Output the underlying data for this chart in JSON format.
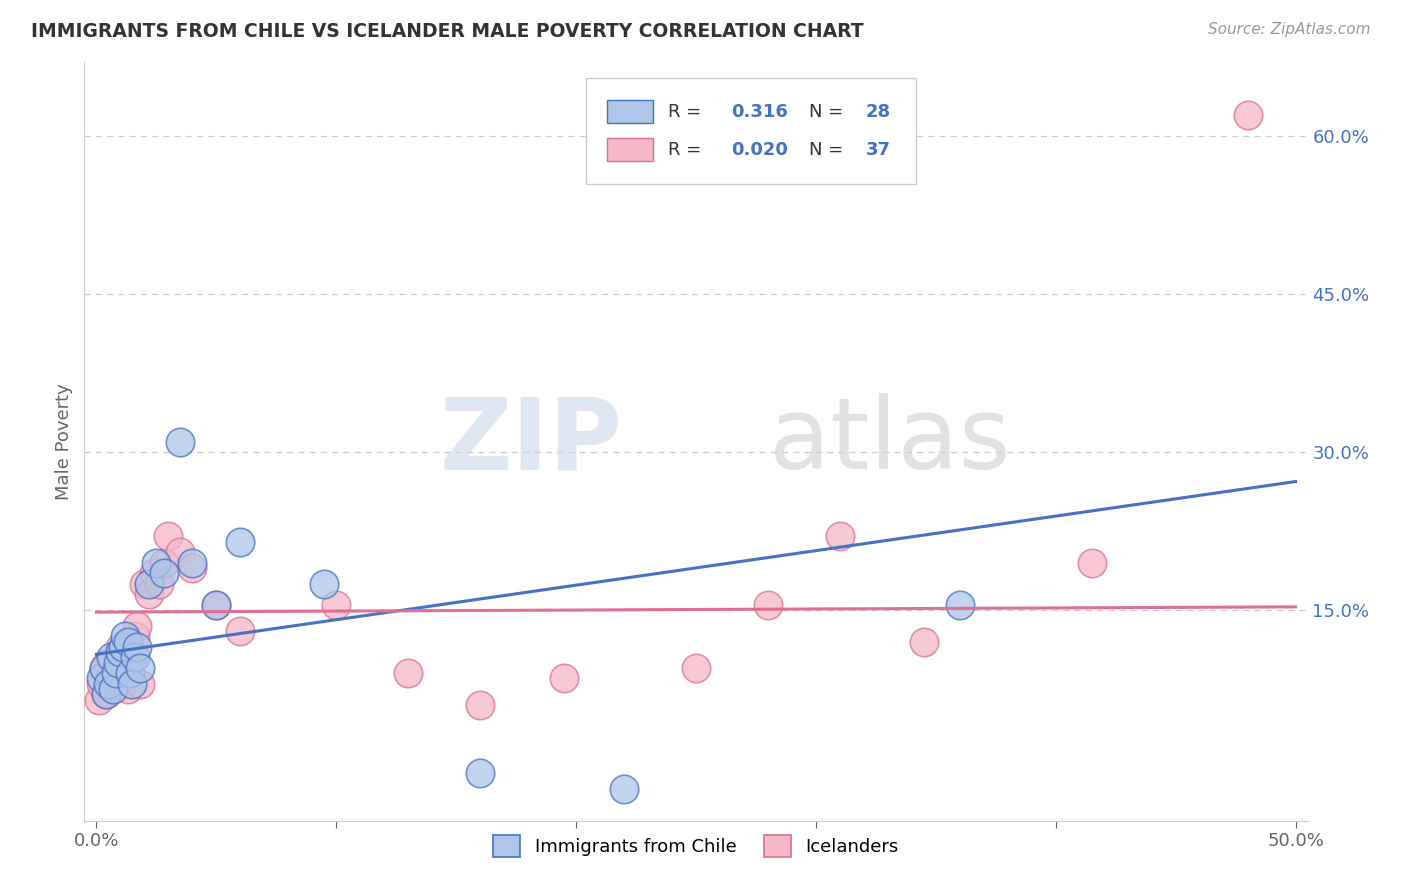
{
  "title": "IMMIGRANTS FROM CHILE VS ICELANDER MALE POVERTY CORRELATION CHART",
  "source": "Source: ZipAtlas.com",
  "ylabel": "Male Poverty",
  "xlim": [
    -0.005,
    0.505
  ],
  "ylim": [
    -0.05,
    0.67
  ],
  "yticks": [
    0.15,
    0.3,
    0.45,
    0.6
  ],
  "ytick_labels": [
    "15.0%",
    "30.0%",
    "45.0%",
    "60.0%"
  ],
  "xticks": [
    0.0,
    0.1,
    0.2,
    0.3,
    0.4,
    0.5
  ],
  "xtick_labels": [
    "0.0%",
    "",
    "",
    "",
    "",
    "50.0%"
  ],
  "legend_R_blue": "0.316",
  "legend_N_blue": "28",
  "legend_R_pink": "0.020",
  "legend_N_pink": "37",
  "blue_color": "#aec6e8",
  "blue_edge_color": "#4472c4",
  "pink_color": "#f4b8c8",
  "pink_edge_color": "#e07090",
  "blue_line_color": "#4472c4",
  "pink_line_color": "#e07090",
  "background_color": "#ffffff",
  "blue_scatter_x": [
    0.002,
    0.003,
    0.004,
    0.005,
    0.006,
    0.007,
    0.008,
    0.009,
    0.01,
    0.011,
    0.012,
    0.013,
    0.014,
    0.015,
    0.016,
    0.017,
    0.018,
    0.022,
    0.025,
    0.028,
    0.035,
    0.04,
    0.05,
    0.06,
    0.095,
    0.16,
    0.22,
    0.36
  ],
  "blue_scatter_y": [
    0.085,
    0.095,
    0.07,
    0.08,
    0.105,
    0.075,
    0.09,
    0.1,
    0.11,
    0.115,
    0.125,
    0.12,
    0.09,
    0.08,
    0.105,
    0.115,
    0.095,
    0.175,
    0.195,
    0.185,
    0.31,
    0.195,
    0.155,
    0.215,
    0.175,
    -0.005,
    -0.02,
    0.155
  ],
  "pink_scatter_x": [
    0.001,
    0.002,
    0.003,
    0.004,
    0.005,
    0.006,
    0.007,
    0.008,
    0.009,
    0.01,
    0.011,
    0.012,
    0.013,
    0.015,
    0.016,
    0.017,
    0.018,
    0.02,
    0.022,
    0.024,
    0.026,
    0.028,
    0.03,
    0.035,
    0.04,
    0.05,
    0.06,
    0.1,
    0.13,
    0.16,
    0.195,
    0.25,
    0.28,
    0.31,
    0.345,
    0.415,
    0.48
  ],
  "pink_scatter_y": [
    0.065,
    0.08,
    0.095,
    0.07,
    0.1,
    0.085,
    0.075,
    0.09,
    0.105,
    0.115,
    0.095,
    0.11,
    0.075,
    0.105,
    0.125,
    0.135,
    0.08,
    0.175,
    0.165,
    0.185,
    0.175,
    0.195,
    0.22,
    0.205,
    0.19,
    0.155,
    0.13,
    0.155,
    0.09,
    0.06,
    0.085,
    0.095,
    0.155,
    0.22,
    0.12,
    0.195,
    0.62
  ],
  "blue_line_x0": 0.0,
  "blue_line_x1": 0.5,
  "blue_line_y0": 0.108,
  "blue_line_y1": 0.272,
  "pink_line_x0": 0.0,
  "pink_line_x1": 0.5,
  "pink_line_y0": 0.148,
  "pink_line_y1": 0.153
}
